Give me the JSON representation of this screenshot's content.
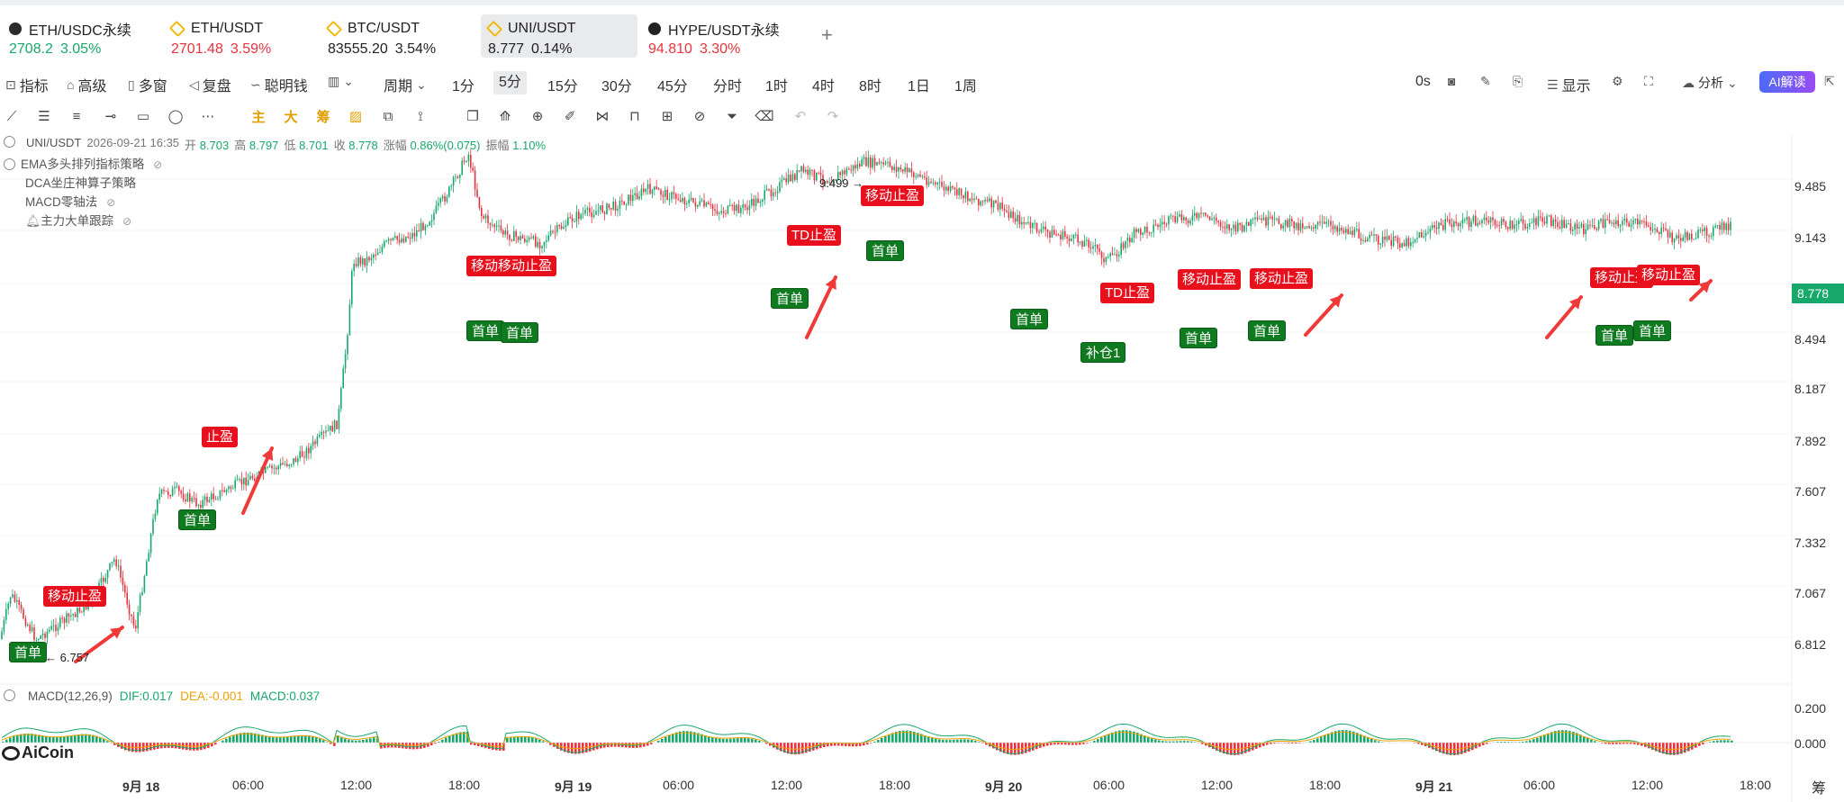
{
  "tabs": [
    {
      "name": "ETH/USDC永续",
      "price": "2708.2",
      "change": "3.05%",
      "dir": "up",
      "icon": "eth-icon"
    },
    {
      "name": "ETH/USDT",
      "price": "2701.48",
      "change": "3.59%",
      "dir": "down",
      "icon": "binance-icon"
    },
    {
      "name": "BTC/USDT",
      "price": "83555.20",
      "change": "3.54%",
      "dir": "dark",
      "icon": "binance-icon"
    },
    {
      "name": "UNI/USDT",
      "price": "8.777",
      "change": "0.14%",
      "dir": "dark",
      "icon": "binance-icon",
      "active": true
    },
    {
      "name": "HYPE/USDT永续",
      "price": "94.810",
      "change": "3.30%",
      "dir": "down",
      "icon": "hype-icon"
    }
  ],
  "tab_add": "+",
  "toolbar": {
    "indicators": "指标",
    "advanced": "高级",
    "multi_window": "多窗",
    "replay": "复盘",
    "smart_money": "聪明钱",
    "period": "周期",
    "periods": [
      "1分",
      "5分",
      "15分",
      "30分",
      "45分",
      "分时",
      "1时",
      "4时",
      "8时",
      "1日",
      "1周"
    ],
    "active_period": "5分",
    "countdown": "0s",
    "display": "显示",
    "analysis": "分析",
    "ai_read": "AI解读"
  },
  "drawing_tools": {
    "main": "主",
    "big": "大",
    "chip": "筹"
  },
  "ohlc": {
    "symbol": "UNI/USDT",
    "time": "2026-09-21 16:35",
    "open_label": "开",
    "open": "8.703",
    "high_label": "高",
    "high": "8.797",
    "low_label": "低",
    "low": "8.701",
    "close_label": "收",
    "close": "8.778",
    "change_label": "涨幅",
    "change": "0.86%(0.075)",
    "amp_label": "振幅",
    "amp": "1.10%"
  },
  "indicators": [
    "EMA多头排列指标策略",
    "DCA坐庄神算子策略",
    "MACD零轴法",
    "主力大单跟踪"
  ],
  "macd": {
    "name": "MACD(12,26,9)",
    "dif": "DIF:0.017",
    "dea": "DEA:-0.001",
    "macd": "MACD:0.037"
  },
  "price_axis": [
    "9.485",
    "9.143",
    "8.778",
    "8.494",
    "8.187",
    "7.892",
    "7.607",
    "7.332",
    "7.067",
    "6.812"
  ],
  "current_price": "8.778",
  "macd_axis": [
    "0.200",
    "0.000"
  ],
  "time_axis": [
    {
      "label": "9月 18",
      "bold": true
    },
    {
      "label": "06:00"
    },
    {
      "label": "12:00"
    },
    {
      "label": "18:00"
    },
    {
      "label": "9月 19",
      "bold": true
    },
    {
      "label": "06:00"
    },
    {
      "label": "12:00"
    },
    {
      "label": "18:00"
    },
    {
      "label": "9月 20",
      "bold": true
    },
    {
      "label": "06:00"
    },
    {
      "label": "12:00"
    },
    {
      "label": "18:00"
    },
    {
      "label": "9月 21",
      "bold": true
    },
    {
      "label": "06:00"
    },
    {
      "label": "12:00"
    },
    {
      "label": "18:00"
    }
  ],
  "corner_label": "筹 爆",
  "high_marker": "9.499",
  "low_marker": "6.757",
  "logo": "AiCoin",
  "signals": [
    {
      "text": "首单",
      "type": "green"
    },
    {
      "text": "移动止盈",
      "type": "red"
    },
    {
      "text": "首单",
      "type": "green"
    },
    {
      "text": "止盈",
      "type": "red"
    },
    {
      "text": "移动移动止盈",
      "type": "red"
    },
    {
      "text": "首单",
      "type": "green"
    },
    {
      "text": "首单",
      "type": "green"
    },
    {
      "text": "TD止盈",
      "type": "red"
    },
    {
      "text": "首单",
      "type": "green"
    },
    {
      "text": "移动止盈",
      "type": "red"
    },
    {
      "text": "首单",
      "type": "green"
    },
    {
      "text": "首单",
      "type": "green"
    },
    {
      "text": "TD止盈",
      "type": "red"
    },
    {
      "text": "补仓1",
      "type": "green"
    },
    {
      "text": "移动止盈",
      "type": "red"
    },
    {
      "text": "首单",
      "type": "green"
    },
    {
      "text": "移动止盈",
      "type": "red"
    },
    {
      "text": "首单",
      "type": "green"
    },
    {
      "text": "移动止盈",
      "type": "red"
    },
    {
      "text": "移动止盈",
      "type": "red"
    },
    {
      "text": "首单",
      "type": "green"
    },
    {
      "text": "首单",
      "type": "green"
    }
  ],
  "colors": {
    "up": "#17a86b",
    "down": "#e8323f",
    "signal_red": "#e8101d",
    "signal_green": "#0f7a20"
  }
}
